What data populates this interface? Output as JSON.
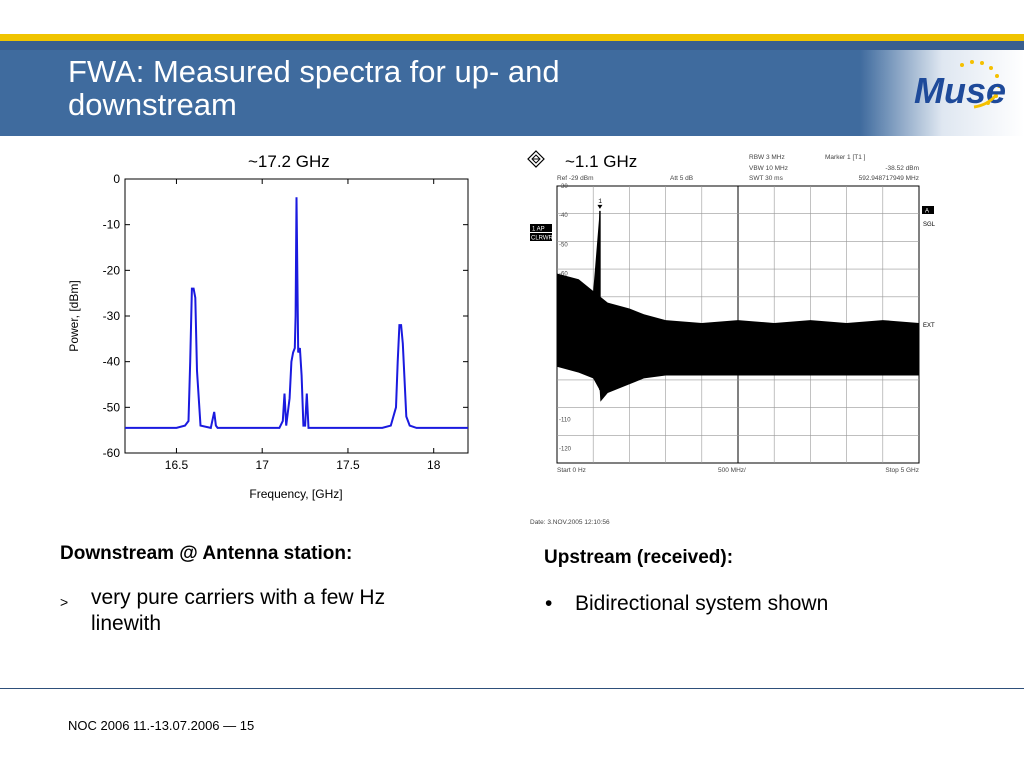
{
  "slide": {
    "title_line1": "FWA: Measured spectra for up- and",
    "title_line2": "downstream",
    "footer": "NOC 2006 11.-13.07.2006 — 15",
    "logo_text": "Muse"
  },
  "left": {
    "caption": "~17.2 GHz",
    "heading": "Downstream @ Antenna station:",
    "bullet_marker": ">",
    "bullet_text_line1": "very pure carriers with a few Hz",
    "bullet_text_line2": "linewith"
  },
  "right": {
    "caption_icon": "diamond-bullet-icon",
    "caption": "~1.1 GHz",
    "heading": "Upstream (received):",
    "bullet_marker": "•",
    "bullet_text": "Bidirectional system shown",
    "analyzer": {
      "rbw": "RBW  3 MHz",
      "vbw": "VBW  10 MHz",
      "swt": "SWT  30 ms",
      "marker_label": "Marker 1 [T1 ]",
      "marker_level": "-38.52 dBm",
      "marker_freq": "592.948717949 MHz",
      "ref": "Ref  -29 dBm",
      "att": "Att  5 dB",
      "tag_1ap": "1 AP",
      "tag_clrwr": "CLRWR",
      "side_a": "A",
      "side_sgl": "SGL",
      "side_ext": "EXT",
      "marker_num": "1",
      "start": "Start  0 Hz",
      "center": "500 MHz/",
      "stop": "Stop  5 GHz",
      "date": "Date: 3.NOV.2005  12:10:56"
    }
  },
  "chart_data": [
    {
      "type": "line",
      "title": "~17.2 GHz",
      "xlabel": "Frequency, [GHz]",
      "ylabel": "Power, [dBm]",
      "xlim": [
        16.2,
        18.2
      ],
      "ylim": [
        -60,
        0
      ],
      "xticks": [
        16.5,
        17,
        17.5,
        18
      ],
      "yticks": [
        0,
        -10,
        -20,
        -30,
        -40,
        -50,
        -60
      ],
      "xtick_labels": [
        "16.5",
        "17",
        "17.5",
        "18"
      ],
      "ytick_labels": [
        "0",
        "-10",
        "-20",
        "-30",
        "-40",
        "-50",
        "-60"
      ],
      "color": "#1a1adf",
      "series": [
        {
          "x": [
            16.2,
            16.3,
            16.4,
            16.5,
            16.55,
            16.57,
            16.58,
            16.59,
            16.6,
            16.61,
            16.62,
            16.64,
            16.7,
            16.72,
            16.73,
            16.74,
            16.8,
            16.9,
            17.0,
            17.05,
            17.1,
            17.12,
            17.13,
            17.14,
            17.16,
            17.17,
            17.18,
            17.19,
            17.195,
            17.2,
            17.205,
            17.21,
            17.22,
            17.23,
            17.24,
            17.25,
            17.26,
            17.27,
            17.28,
            17.3,
            17.4,
            17.5,
            17.6,
            17.7,
            17.75,
            17.78,
            17.79,
            17.8,
            17.81,
            17.82,
            17.84,
            17.86,
            17.9,
            18.0,
            18.1,
            18.2
          ],
          "y": [
            -54.5,
            -54.5,
            -54.5,
            -54.5,
            -54,
            -53,
            -40,
            -24,
            -24,
            -26,
            -42,
            -54,
            -54.5,
            -51,
            -54,
            -54.5,
            -54.5,
            -54.5,
            -54.5,
            -54.5,
            -54.5,
            -53,
            -47,
            -54,
            -48,
            -40,
            -38,
            -37,
            -30,
            -4,
            -22,
            -38,
            -37,
            -43,
            -54,
            -54,
            -47,
            -54.5,
            -54.5,
            -54.5,
            -54.5,
            -54.5,
            -54.5,
            -54.5,
            -54,
            -50,
            -40,
            -32,
            -32,
            -36,
            -52,
            -54,
            -54.5,
            -54.5,
            -54.5,
            -54.5
          ]
        }
      ]
    },
    {
      "type": "line",
      "title": "~1.1 GHz",
      "xlabel": "",
      "ylabel": "",
      "xlim": [
        0,
        5
      ],
      "ylim": [
        -125,
        -30
      ],
      "xunit": "GHz",
      "yunit": "dBm",
      "ytick_labels": [
        "-30",
        "-40",
        "-50",
        "-60",
        "-110",
        "-120"
      ],
      "yticks": [
        -30,
        -40,
        -50,
        -60,
        -110,
        -120
      ],
      "grid": true,
      "series": [
        {
          "name": "1 AP CLRWR",
          "x": [
            0.0,
            0.3,
            0.5,
            0.59,
            0.6,
            0.7,
            1.0,
            1.2,
            1.5,
            2.0,
            2.5,
            3.0,
            3.5,
            4.0,
            4.5,
            5.0
          ],
          "y_upper": [
            -60,
            -62,
            -66,
            -38.5,
            -68,
            -70,
            -72,
            -74,
            -76,
            -77,
            -76,
            -77,
            -76,
            -77,
            -76,
            -77
          ],
          "y_lower": [
            -92,
            -94,
            -96,
            -100,
            -104,
            -101,
            -98,
            -96,
            -95,
            -95,
            -95,
            -95,
            -95,
            -95,
            -95,
            -95
          ]
        }
      ],
      "marker": {
        "x_mhz": 592.948717949,
        "y_dbm": -38.52
      }
    }
  ]
}
